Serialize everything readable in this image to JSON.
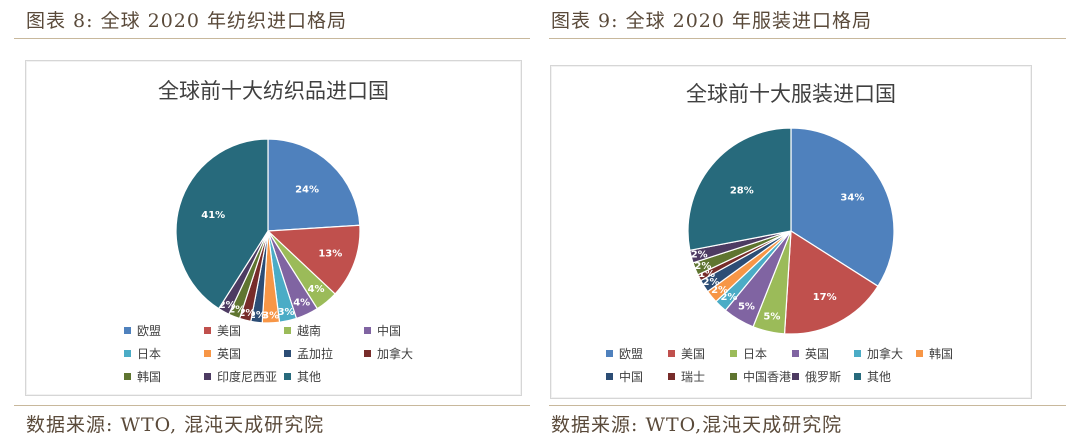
{
  "left_figure": {
    "caption": "图表 8:  全球 2020 年纺织进口格局",
    "source": "数据来源:  WTO,  混沌天成研究院"
  },
  "right_figure": {
    "caption": "图表 9:  全球 2020 年服装进口格局",
    "source": "数据来源:  WTO,混沌天成研究院"
  },
  "chart_data": [
    {
      "type": "pie",
      "title": "全球前十大纺织品进口国",
      "legend_position": "bottom",
      "slices": [
        {
          "label": "欧盟",
          "value": 24,
          "text": "24%",
          "color": "#4f81bd"
        },
        {
          "label": "美国",
          "value": 13,
          "text": "13%",
          "color": "#c0504d"
        },
        {
          "label": "越南",
          "value": 4,
          "text": "4%",
          "color": "#9bbb59"
        },
        {
          "label": "中国",
          "value": 4,
          "text": "4%",
          "color": "#8064a2"
        },
        {
          "label": "日本",
          "value": 3,
          "text": "3%",
          "color": "#4bacc6"
        },
        {
          "label": "英国",
          "value": 3,
          "text": "3%",
          "color": "#f79646"
        },
        {
          "label": "孟加拉",
          "value": 2,
          "text": "2%",
          "color": "#2c4d75"
        },
        {
          "label": "加拿大",
          "value": 2,
          "text": "2%",
          "color": "#772c2a"
        },
        {
          "label": "韩国",
          "value": 2,
          "text": "2%",
          "color": "#5f7530"
        },
        {
          "label": "印度尼西亚",
          "value": 2,
          "text": "2%",
          "color": "#4d3b62"
        },
        {
          "label": "其他",
          "value": 41,
          "text": "41%",
          "color": "#276a7c"
        }
      ]
    },
    {
      "type": "pie",
      "title": "全球前十大服装进口国",
      "legend_position": "bottom",
      "slices": [
        {
          "label": "欧盟",
          "value": 34,
          "text": "34%",
          "color": "#4f81bd"
        },
        {
          "label": "美国",
          "value": 17,
          "text": "17%",
          "color": "#c0504d"
        },
        {
          "label": "日本",
          "value": 5,
          "text": "5%",
          "color": "#9bbb59"
        },
        {
          "label": "英国",
          "value": 5,
          "text": "5%",
          "color": "#8064a2"
        },
        {
          "label": "加拿大",
          "value": 2,
          "text": "2%",
          "color": "#4bacc6"
        },
        {
          "label": "韩国",
          "value": 2,
          "text": "2%",
          "color": "#f79646"
        },
        {
          "label": "中国",
          "value": 2,
          "text": "2%",
          "color": "#2c4d75"
        },
        {
          "label": "瑞士",
          "value": 1,
          "text": "1%",
          "color": "#772c2a"
        },
        {
          "label": "中国香港",
          "value": 2,
          "text": "2%",
          "color": "#5f7530"
        },
        {
          "label": "俄罗斯",
          "value": 2,
          "text": "2%",
          "color": "#4d3b62"
        },
        {
          "label": "其他",
          "value": 28,
          "text": "28%",
          "color": "#276a7c"
        }
      ]
    }
  ]
}
